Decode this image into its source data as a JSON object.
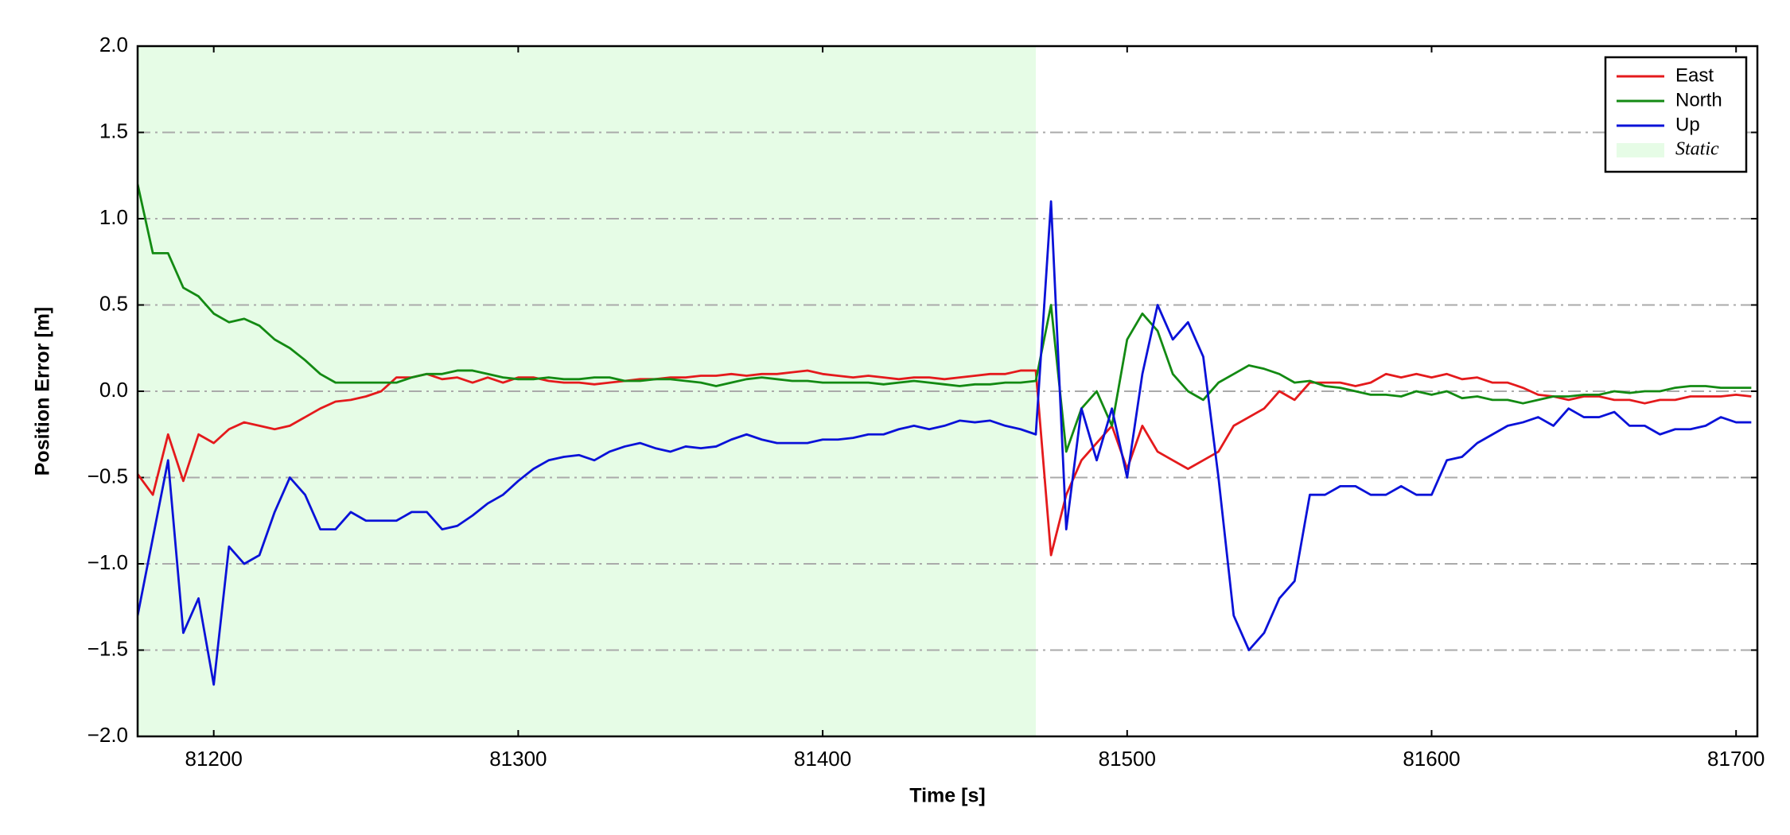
{
  "chart_data": {
    "type": "line",
    "x_label": "Time [s]",
    "y_label": "Position Error [m]",
    "xlim": [
      81175,
      81707
    ],
    "ylim": [
      -2,
      2
    ],
    "xticks": [
      81200,
      81300,
      81400,
      81500,
      81600,
      81700
    ],
    "yticks": [
      {
        "value": -2,
        "label": "−2.0"
      },
      {
        "value": -1.5,
        "label": "−1.5"
      },
      {
        "value": -1,
        "label": "−1.0"
      },
      {
        "value": -0.5,
        "label": "−0.5"
      },
      {
        "value": 0,
        "label": "0.0"
      },
      {
        "value": 0.5,
        "label": "0.5"
      },
      {
        "value": 1,
        "label": "1.0"
      },
      {
        "value": 1.5,
        "label": "1.5"
      },
      {
        "value": 2,
        "label": "2.0"
      }
    ],
    "grid": true,
    "legend_position": "upper right",
    "spans": [
      {
        "name": "Static",
        "start": 81175,
        "end": 81470,
        "color": "#e6fce6"
      }
    ],
    "x": [
      81175,
      81180,
      81185,
      81190,
      81195,
      81200,
      81205,
      81210,
      81215,
      81220,
      81225,
      81230,
      81235,
      81240,
      81245,
      81250,
      81255,
      81260,
      81265,
      81270,
      81275,
      81280,
      81285,
      81290,
      81295,
      81300,
      81305,
      81310,
      81315,
      81320,
      81325,
      81330,
      81335,
      81340,
      81345,
      81350,
      81355,
      81360,
      81365,
      81370,
      81375,
      81380,
      81385,
      81390,
      81395,
      81400,
      81405,
      81410,
      81415,
      81420,
      81425,
      81430,
      81435,
      81440,
      81445,
      81450,
      81455,
      81460,
      81465,
      81470,
      81475,
      81480,
      81485,
      81490,
      81495,
      81500,
      81505,
      81510,
      81515,
      81520,
      81525,
      81530,
      81535,
      81540,
      81545,
      81550,
      81555,
      81560,
      81565,
      81570,
      81575,
      81580,
      81585,
      81590,
      81595,
      81600,
      81605,
      81610,
      81615,
      81620,
      81625,
      81630,
      81635,
      81640,
      81645,
      81650,
      81655,
      81660,
      81665,
      81670,
      81675,
      81680,
      81685,
      81690,
      81695,
      81700,
      81705
    ],
    "series": [
      {
        "name": "East",
        "color": "#e41a1c",
        "values": [
          -0.48,
          -0.6,
          -0.25,
          -0.52,
          -0.25,
          -0.3,
          -0.22,
          -0.18,
          -0.2,
          -0.22,
          -0.2,
          -0.15,
          -0.1,
          -0.06,
          -0.05,
          -0.03,
          0.0,
          0.08,
          0.08,
          0.1,
          0.07,
          0.08,
          0.05,
          0.08,
          0.05,
          0.08,
          0.08,
          0.06,
          0.05,
          0.05,
          0.04,
          0.05,
          0.06,
          0.07,
          0.07,
          0.08,
          0.08,
          0.09,
          0.09,
          0.1,
          0.09,
          0.1,
          0.1,
          0.11,
          0.12,
          0.1,
          0.09,
          0.08,
          0.09,
          0.08,
          0.07,
          0.08,
          0.08,
          0.07,
          0.08,
          0.09,
          0.1,
          0.1,
          0.12,
          0.12,
          -0.95,
          -0.6,
          -0.4,
          -0.3,
          -0.2,
          -0.45,
          -0.2,
          -0.35,
          -0.4,
          -0.45,
          -0.4,
          -0.35,
          -0.2,
          -0.15,
          -0.1,
          0.0,
          -0.05,
          0.05,
          0.05,
          0.05,
          0.03,
          0.05,
          0.1,
          0.08,
          0.1,
          0.08,
          0.1,
          0.07,
          0.08,
          0.05,
          0.05,
          0.02,
          -0.02,
          -0.03,
          -0.05,
          -0.03,
          -0.03,
          -0.05,
          -0.05,
          -0.07,
          -0.05,
          -0.05,
          -0.03,
          -0.03,
          -0.03,
          -0.02,
          -0.03
        ]
      },
      {
        "name": "North",
        "color": "#138a13",
        "values": [
          1.2,
          0.8,
          0.8,
          0.6,
          0.55,
          0.45,
          0.4,
          0.42,
          0.38,
          0.3,
          0.25,
          0.18,
          0.1,
          0.05,
          0.05,
          0.05,
          0.05,
          0.05,
          0.08,
          0.1,
          0.1,
          0.12,
          0.12,
          0.1,
          0.08,
          0.07,
          0.07,
          0.08,
          0.07,
          0.07,
          0.08,
          0.08,
          0.06,
          0.06,
          0.07,
          0.07,
          0.06,
          0.05,
          0.03,
          0.05,
          0.07,
          0.08,
          0.07,
          0.06,
          0.06,
          0.05,
          0.05,
          0.05,
          0.05,
          0.04,
          0.05,
          0.06,
          0.05,
          0.04,
          0.03,
          0.04,
          0.04,
          0.05,
          0.05,
          0.06,
          0.5,
          -0.35,
          -0.1,
          0.0,
          -0.2,
          0.3,
          0.45,
          0.35,
          0.1,
          0.0,
          -0.05,
          0.05,
          0.1,
          0.15,
          0.13,
          0.1,
          0.05,
          0.06,
          0.03,
          0.02,
          0.0,
          -0.02,
          -0.02,
          -0.03,
          0.0,
          -0.02,
          0.0,
          -0.04,
          -0.03,
          -0.05,
          -0.05,
          -0.07,
          -0.05,
          -0.03,
          -0.03,
          -0.02,
          -0.02,
          0.0,
          -0.01,
          0.0,
          0.0,
          0.02,
          0.03,
          0.03,
          0.02,
          0.02,
          0.02
        ]
      },
      {
        "name": "Up",
        "color": "#0a12d8",
        "values": [
          -1.3,
          -0.85,
          -0.4,
          -1.4,
          -1.2,
          -1.7,
          -0.9,
          -1.0,
          -0.95,
          -0.7,
          -0.5,
          -0.6,
          -0.8,
          -0.8,
          -0.7,
          -0.75,
          -0.75,
          -0.75,
          -0.7,
          -0.7,
          -0.8,
          -0.78,
          -0.72,
          -0.65,
          -0.6,
          -0.52,
          -0.45,
          -0.4,
          -0.38,
          -0.37,
          -0.4,
          -0.35,
          -0.32,
          -0.3,
          -0.33,
          -0.35,
          -0.32,
          -0.33,
          -0.32,
          -0.28,
          -0.25,
          -0.28,
          -0.3,
          -0.3,
          -0.3,
          -0.28,
          -0.28,
          -0.27,
          -0.25,
          -0.25,
          -0.22,
          -0.2,
          -0.22,
          -0.2,
          -0.17,
          -0.18,
          -0.17,
          -0.2,
          -0.22,
          -0.25,
          1.1,
          -0.8,
          -0.1,
          -0.4,
          -0.1,
          -0.5,
          0.1,
          0.5,
          0.3,
          0.4,
          0.2,
          -0.5,
          -1.3,
          -1.5,
          -1.4,
          -1.2,
          -1.1,
          -0.6,
          -0.6,
          -0.55,
          -0.55,
          -0.6,
          -0.6,
          -0.55,
          -0.6,
          -0.6,
          -0.4,
          -0.38,
          -0.3,
          -0.25,
          -0.2,
          -0.18,
          -0.15,
          -0.2,
          -0.1,
          -0.15,
          -0.15,
          -0.12,
          -0.2,
          -0.2,
          -0.25,
          -0.22,
          -0.22,
          -0.2,
          -0.15,
          -0.18,
          -0.18
        ]
      }
    ]
  }
}
